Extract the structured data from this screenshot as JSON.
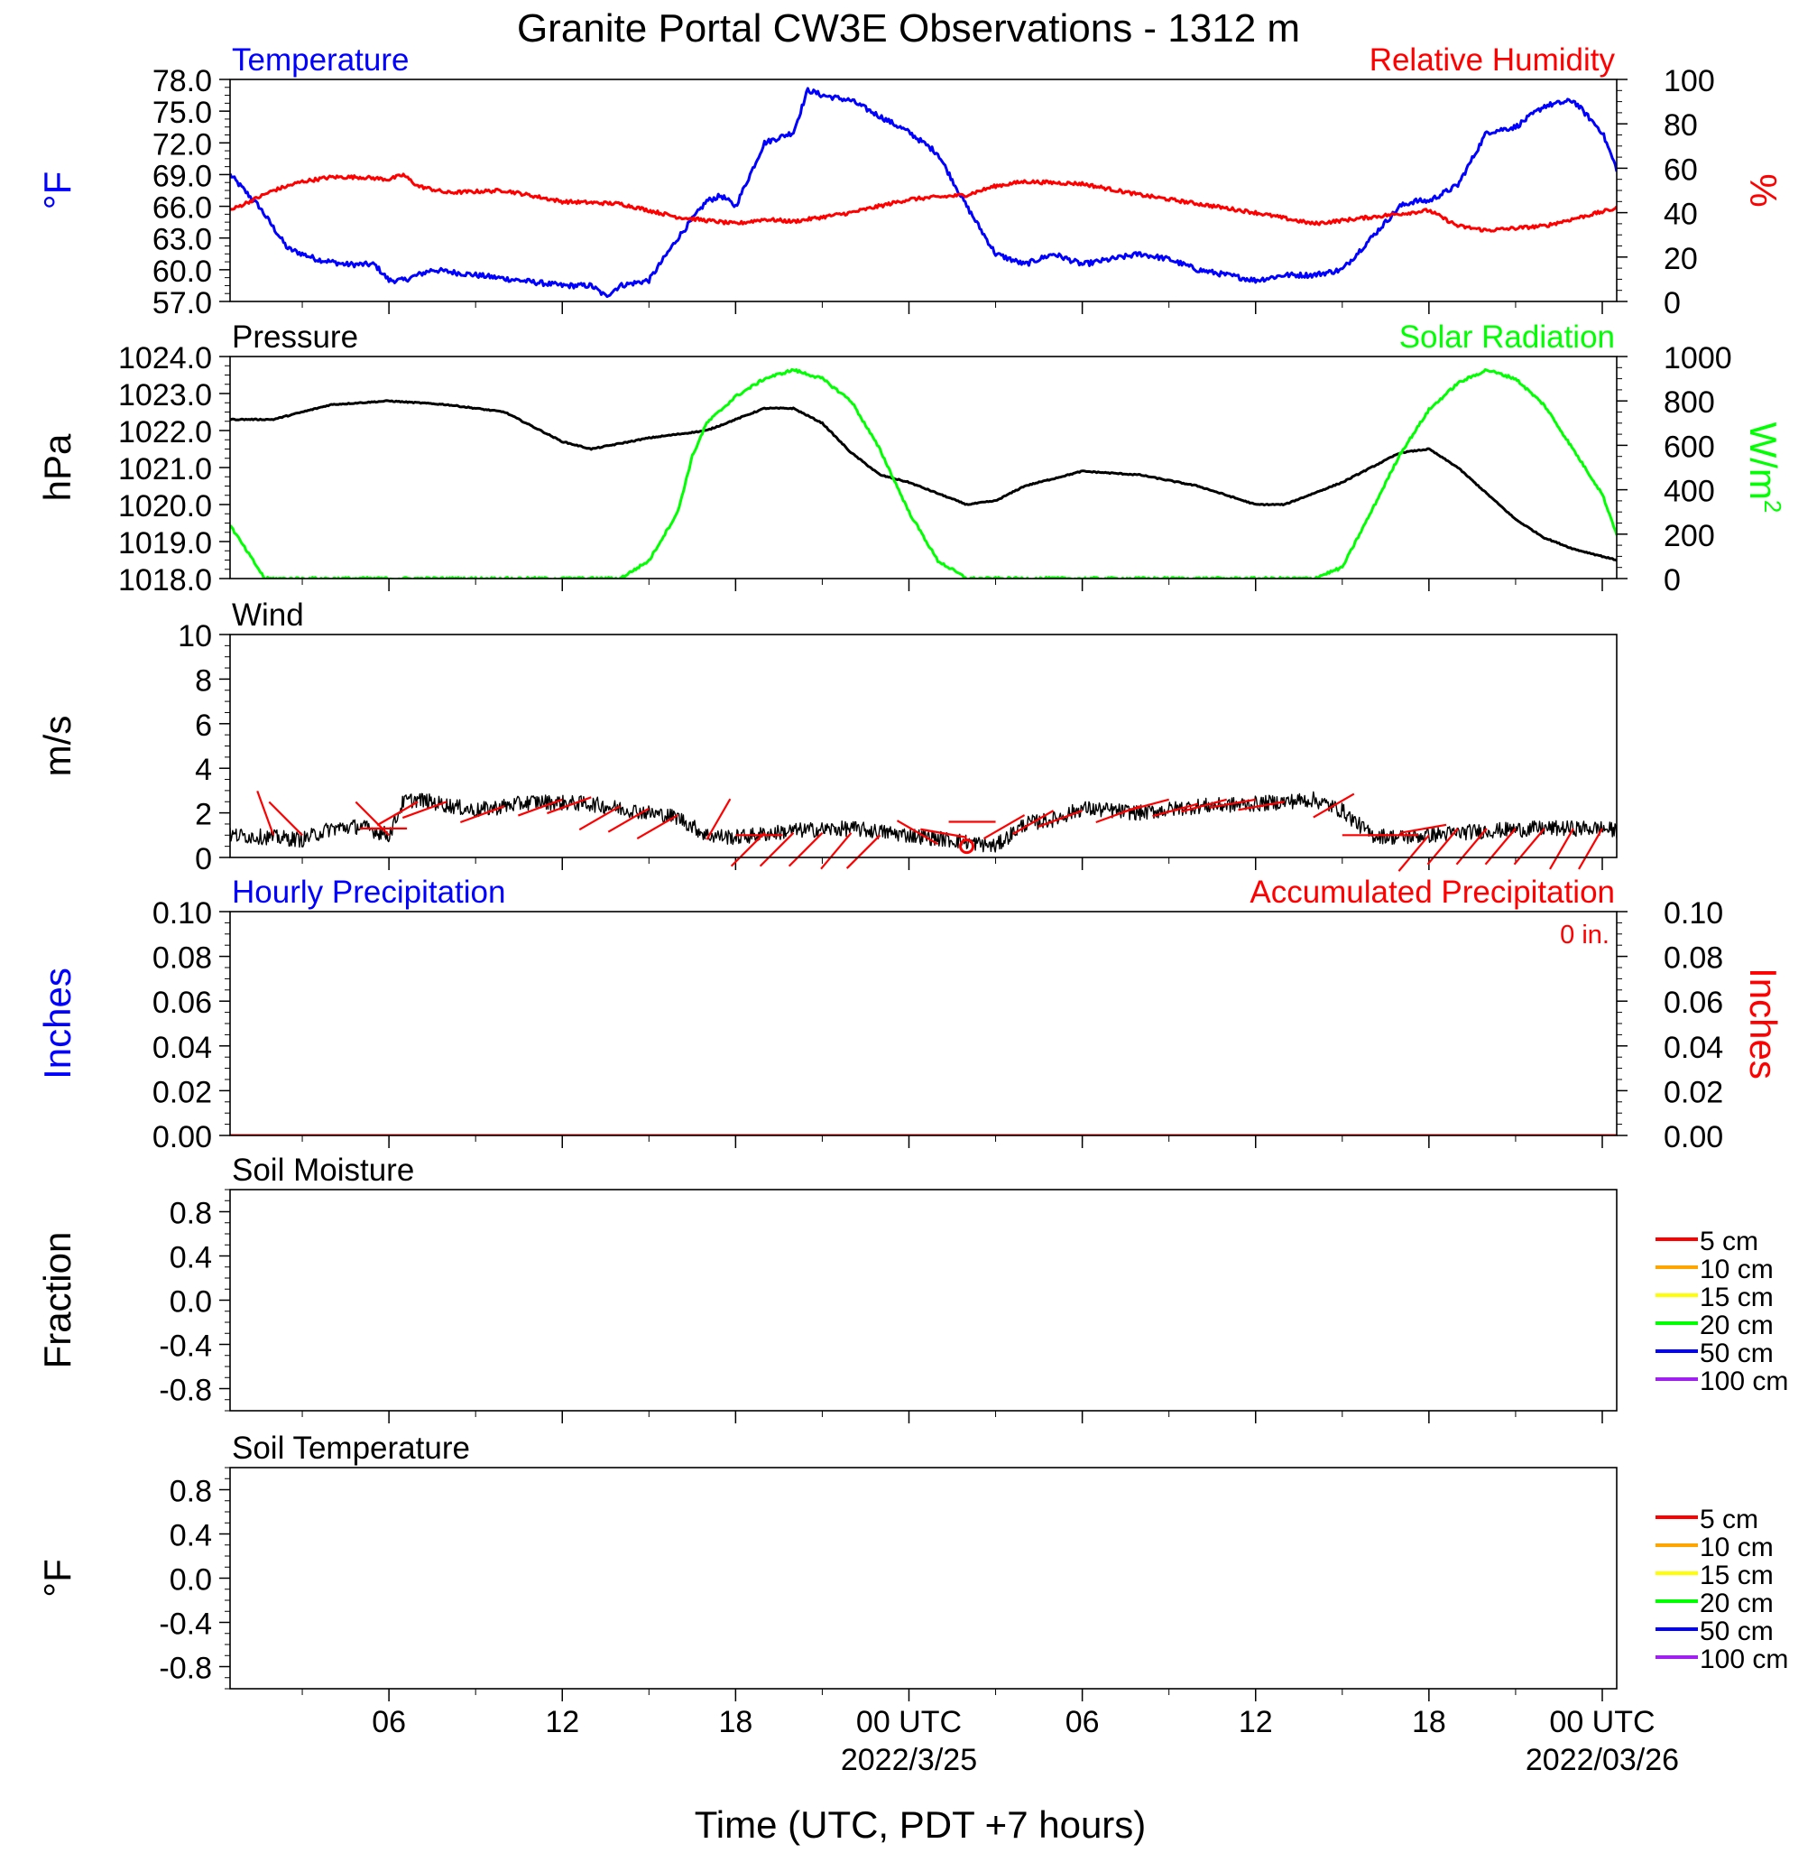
{
  "title": "Granite Portal CW3E Observations - 1312 m",
  "xaxis": {
    "label": "Time (UTC, PDT +7 hours)",
    "range_hours": [
      -23.5,
      24.5
    ],
    "ticks": [
      {
        "h": -18,
        "label": "06"
      },
      {
        "h": -12,
        "label": "12"
      },
      {
        "h": -6,
        "label": "18"
      },
      {
        "h": 0,
        "label": "00 UTC",
        "date": "2022/3/25"
      },
      {
        "h": 6,
        "label": "06"
      },
      {
        "h": 12,
        "label": "12"
      },
      {
        "h": 18,
        "label": "18"
      },
      {
        "h": 24,
        "label": "00 UTC",
        "date": "2022/03/26"
      }
    ]
  },
  "colors": {
    "temperature": "#0000ff",
    "humidity": "#ff0000",
    "pressure": "#000000",
    "solar": "#00ff00",
    "wind": "#000000",
    "barbs": "#ff0000",
    "precip_hourly": "#0000ff",
    "precip_accum": "#ff0000"
  },
  "chart_data": [
    {
      "type": "line",
      "id": "temperature-humidity",
      "left_title": "Temperature",
      "right_title": "Relative Humidity",
      "left_unit": "°F",
      "right_unit": "%",
      "left_ylim": [
        57,
        78
      ],
      "left_ticks": [
        "57.0",
        "60.0",
        "63.0",
        "66.0",
        "69.0",
        "72.0",
        "75.0",
        "78.0"
      ],
      "right_ylim": [
        0,
        100
      ],
      "right_ticks": [
        "0",
        "20",
        "40",
        "60",
        "80",
        "100"
      ],
      "series": [
        {
          "name": "Temperature",
          "axis": "left",
          "color": "#0000ff",
          "x": [
            -23.5,
            -22.5,
            -21.5,
            -20.5,
            -19.5,
            -18.5,
            -18,
            -17.5,
            -16.5,
            -15,
            -13.5,
            -12,
            -11,
            -10.5,
            -10,
            -9,
            -8,
            -7,
            -6.5,
            -6,
            -5,
            -4.5,
            -4,
            -3.5,
            -3,
            -2,
            -1,
            0,
            1,
            2,
            3,
            4,
            5,
            6,
            7,
            8,
            9,
            10,
            11,
            12,
            13,
            14,
            15,
            16,
            17,
            17.5,
            18,
            19,
            20,
            21,
            22,
            23,
            24,
            24.5
          ],
          "y": [
            69,
            66,
            62,
            61,
            60.5,
            60.5,
            59,
            59,
            60,
            59.5,
            59,
            58.5,
            58.5,
            57.5,
            58.5,
            59,
            63,
            66.5,
            67,
            66,
            72,
            72.5,
            73,
            77,
            76.5,
            76,
            74.5,
            73,
            71,
            66,
            61.5,
            60.5,
            61.5,
            60.5,
            61,
            61.5,
            61,
            60,
            59.5,
            59,
            59.5,
            59.5,
            60,
            63,
            66,
            66.5,
            66.5,
            68,
            73,
            73.5,
            75.5,
            76,
            73,
            69.5
          ]
        },
        {
          "name": "Relative Humidity",
          "axis": "right",
          "color": "#ff0000",
          "x": [
            -23.5,
            -22,
            -21,
            -20,
            -19,
            -18,
            -17.5,
            -17,
            -16,
            -14,
            -12,
            -10,
            -8,
            -6,
            -5,
            -4,
            -2,
            0,
            2,
            3,
            4,
            6,
            8,
            10,
            12,
            14,
            16,
            18,
            19,
            20,
            22,
            24.5
          ],
          "y": [
            41,
            50,
            54,
            56,
            56,
            55,
            57,
            52,
            49,
            50,
            45,
            44,
            38,
            35,
            37,
            36,
            40,
            46,
            48,
            52,
            54,
            53,
            48,
            44,
            40,
            35,
            38,
            41,
            34,
            32,
            34,
            42
          ]
        }
      ]
    },
    {
      "type": "line",
      "id": "pressure-solar",
      "left_title": "Pressure",
      "right_title": "Solar Radiation",
      "left_unit": "hPa",
      "right_unit_base": "W/m",
      "right_unit_sup": "2",
      "left_ylim": [
        1018,
        1024
      ],
      "left_ticks": [
        "1018.0",
        "1019.0",
        "1020.0",
        "1021.0",
        "1022.0",
        "1023.0",
        "1024.0"
      ],
      "right_ylim": [
        0,
        1000
      ],
      "right_ticks": [
        "0",
        "200",
        "400",
        "600",
        "800",
        "1000"
      ],
      "series": [
        {
          "name": "Pressure",
          "axis": "left",
          "color": "#000000",
          "x": [
            -23.5,
            -22,
            -20,
            -18,
            -16,
            -14,
            -12,
            -11,
            -9,
            -7,
            -5,
            -4,
            -3,
            -2,
            -1,
            0,
            1,
            2,
            3,
            4,
            6,
            8,
            10,
            12,
            13,
            15,
            16,
            17,
            18,
            19,
            20,
            21,
            22,
            23,
            24,
            24.5
          ],
          "y": [
            1022.3,
            1022.3,
            1022.7,
            1022.8,
            1022.7,
            1022.5,
            1021.7,
            1021.5,
            1021.8,
            1022.0,
            1022.6,
            1022.6,
            1022.2,
            1021.4,
            1020.8,
            1020.6,
            1020.3,
            1020.0,
            1020.1,
            1020.5,
            1020.9,
            1020.8,
            1020.5,
            1020.0,
            1020.0,
            1020.6,
            1021.0,
            1021.4,
            1021.5,
            1021.0,
            1020.3,
            1019.6,
            1019.1,
            1018.8,
            1018.6,
            1018.5
          ]
        },
        {
          "name": "Solar Radiation",
          "axis": "right",
          "color": "#00ff00",
          "x": [
            -23.5,
            -22.3,
            -22,
            -10,
            -9,
            -8,
            -7.5,
            -7,
            -6,
            -5,
            -4,
            -3,
            -2,
            -1,
            0,
            1,
            2,
            11,
            12,
            13,
            14,
            15,
            16,
            17,
            18,
            19,
            20,
            21,
            22,
            23,
            24,
            24.5
          ],
          "y": [
            240,
            0,
            0,
            0,
            80,
            300,
            550,
            700,
            820,
            900,
            940,
            900,
            800,
            580,
            300,
            80,
            0,
            0,
            0,
            0,
            0,
            50,
            300,
            560,
            760,
            880,
            940,
            900,
            780,
            580,
            380,
            200
          ]
        }
      ]
    },
    {
      "type": "line",
      "id": "wind",
      "left_title": "Wind",
      "left_unit": "m/s",
      "left_ylim": [
        0,
        10
      ],
      "left_ticks": [
        "0",
        "2",
        "4",
        "6",
        "8",
        "10"
      ],
      "series": [
        {
          "name": "Wind",
          "axis": "left",
          "color": "#000000",
          "x": [
            -23.5,
            -22,
            -21,
            -20,
            -19,
            -18,
            -17.5,
            -17,
            -15,
            -13,
            -11,
            -10,
            -8,
            -7,
            -6,
            -4,
            -2,
            0,
            2,
            3,
            4,
            5,
            6,
            8,
            10,
            12,
            14,
            15,
            16,
            17,
            18,
            20,
            22,
            24,
            24.5
          ],
          "y": [
            1.0,
            0.9,
            0.8,
            1.3,
            1.4,
            1.0,
            2.5,
            2.6,
            2.1,
            2.5,
            2.4,
            2.2,
            1.8,
            1.0,
            0.9,
            1.2,
            1.3,
            1.0,
            0.7,
            0.5,
            1.5,
            1.7,
            2.2,
            2.0,
            2.3,
            2.4,
            2.6,
            2.1,
            1.0,
            0.9,
            1.0,
            1.2,
            1.3,
            1.3,
            1.2
          ]
        }
      ],
      "barbs": {
        "color": "#ff0000",
        "x": [
          -22,
          -21,
          -19,
          -18,
          -17,
          -16,
          -14,
          -12,
          -11,
          -10,
          -9,
          -8,
          -7,
          -6,
          -5,
          -4,
          -3,
          -2,
          -1,
          1,
          2,
          3,
          4,
          5,
          6,
          8,
          9,
          10,
          11,
          12,
          13,
          14,
          15,
          16,
          17,
          18,
          19,
          20,
          21,
          22,
          23,
          24
        ],
        "speed": [
          1.0,
          1.0,
          1.3,
          1.0,
          2.5,
          2.5,
          2.3,
          2.6,
          2.7,
          2.3,
          2.2,
          1.9,
          0.8,
          1.0,
          1.1,
          1.1,
          1.1,
          1.1,
          1.0,
          0.6,
          0.9,
          1.6,
          1.9,
          2.1,
          2.1,
          2.3,
          2.6,
          2.4,
          2.6,
          2.6,
          2.5,
          1.8,
          1.0,
          1.0,
          1.1,
          1.0,
          1.3,
          1.3,
          1.3,
          1.3,
          1.3,
          1.3
        ],
        "dir": [
          340,
          315,
          90,
          315,
          240,
          250,
          250,
          250,
          250,
          240,
          240,
          240,
          30,
          90,
          225,
          225,
          225,
          220,
          225,
          300,
          280,
          270,
          240,
          240,
          250,
          250,
          255,
          255,
          255,
          260,
          260,
          60,
          90,
          90,
          80,
          220,
          220,
          220,
          220,
          220,
          210,
          210
        ],
        "calm_x": [
          2
        ]
      }
    },
    {
      "type": "line",
      "id": "precipitation",
      "left_title": "Hourly Precipitation",
      "right_title": "Accumulated Precipitation",
      "accum_text": "0 in.",
      "left_unit": "Inches",
      "right_unit": "Inches",
      "left_ylim": [
        0,
        0.1
      ],
      "left_ticks": [
        "0.00",
        "0.02",
        "0.04",
        "0.06",
        "0.08",
        "0.10"
      ],
      "right_ylim": [
        0,
        0.1
      ],
      "right_ticks": [
        "0.00",
        "0.02",
        "0.04",
        "0.06",
        "0.08",
        "0.10"
      ],
      "series": [
        {
          "name": "Hourly Precipitation",
          "axis": "left",
          "color": "#0000ff",
          "x": [
            -23.5,
            24.5
          ],
          "y": [
            0,
            0
          ]
        },
        {
          "name": "Accumulated Precipitation",
          "axis": "right",
          "color": "#ff0000",
          "x": [
            -23.5,
            24.5
          ],
          "y": [
            0,
            0
          ]
        }
      ]
    },
    {
      "type": "line",
      "id": "soil-moisture",
      "left_title": "Soil Moisture",
      "left_unit": "Fraction",
      "left_ylim": [
        -1,
        1
      ],
      "left_ticks": [
        "-0.8",
        "-0.4",
        "0.0",
        "0.4",
        "0.8"
      ],
      "legend": [
        {
          "label": "5 cm",
          "color": "#ff0000"
        },
        {
          "label": "10 cm",
          "color": "#ffa500"
        },
        {
          "label": "15 cm",
          "color": "#ffff00"
        },
        {
          "label": "20 cm",
          "color": "#00ff00"
        },
        {
          "label": "50 cm",
          "color": "#0000ff"
        },
        {
          "label": "100 cm",
          "color": "#a020f0"
        }
      ],
      "series": []
    },
    {
      "type": "line",
      "id": "soil-temperature",
      "left_title": "Soil Temperature",
      "left_unit": "°F",
      "left_ylim": [
        -1,
        1
      ],
      "left_ticks": [
        "-0.8",
        "-0.4",
        "0.0",
        "0.4",
        "0.8"
      ],
      "legend": [
        {
          "label": "5 cm",
          "color": "#ff0000"
        },
        {
          "label": "10 cm",
          "color": "#ffa500"
        },
        {
          "label": "15 cm",
          "color": "#ffff00"
        },
        {
          "label": "20 cm",
          "color": "#00ff00"
        },
        {
          "label": "50 cm",
          "color": "#0000ff"
        },
        {
          "label": "100 cm",
          "color": "#a020f0"
        }
      ],
      "series": []
    }
  ]
}
